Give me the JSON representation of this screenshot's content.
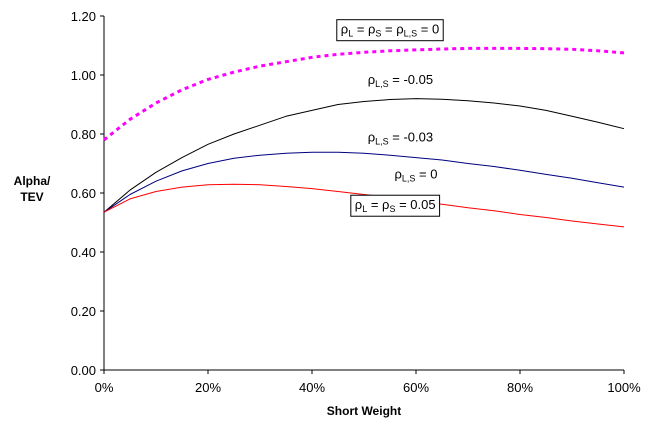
{
  "chart_data": {
    "type": "line",
    "title": "",
    "xlabel": "Short Weight",
    "ylabel": [
      "Alpha/",
      "TEV"
    ],
    "x_ticks": [
      "0%",
      "20%",
      "40%",
      "60%",
      "80%",
      "100%"
    ],
    "y_ticks": [
      "0.00",
      "0.20",
      "0.40",
      "0.60",
      "0.80",
      "1.00",
      "1.20"
    ],
    "xlim": [
      0,
      1
    ],
    "ylim": [
      0,
      1.2
    ],
    "grid": false,
    "legend": "none",
    "x": [
      0,
      0.05,
      0.1,
      0.15,
      0.2,
      0.25,
      0.3,
      0.35,
      0.4,
      0.45,
      0.5,
      0.55,
      0.6,
      0.65,
      0.7,
      0.75,
      0.8,
      0.85,
      0.9,
      0.95,
      1.0
    ],
    "series": [
      {
        "color": "#ff00ff",
        "dashed": true,
        "values": [
          0.78,
          0.85,
          0.905,
          0.95,
          0.985,
          1.01,
          1.03,
          1.045,
          1.06,
          1.07,
          1.077,
          1.082,
          1.085,
          1.088,
          1.09,
          1.09,
          1.09,
          1.089,
          1.087,
          1.082,
          1.075
        ]
      },
      {
        "color": "#000000",
        "dashed": false,
        "values": [
          0.535,
          0.61,
          0.67,
          0.72,
          0.765,
          0.8,
          0.83,
          0.86,
          0.88,
          0.9,
          0.91,
          0.917,
          0.92,
          0.918,
          0.913,
          0.905,
          0.895,
          0.88,
          0.86,
          0.84,
          0.818
        ]
      },
      {
        "color": "#000080",
        "dashed": false,
        "values": [
          0.535,
          0.595,
          0.64,
          0.675,
          0.7,
          0.718,
          0.728,
          0.735,
          0.738,
          0.738,
          0.735,
          0.728,
          0.72,
          0.712,
          0.7,
          0.69,
          0.677,
          0.663,
          0.65,
          0.635,
          0.62
        ]
      },
      {
        "color": "#ff0000",
        "dashed": false,
        "values": [
          0.535,
          0.58,
          0.605,
          0.62,
          0.628,
          0.63,
          0.628,
          0.622,
          0.615,
          0.605,
          0.595,
          0.585,
          0.573,
          0.562,
          0.55,
          0.54,
          0.527,
          0.517,
          0.505,
          0.495,
          0.485
        ]
      }
    ],
    "annotations": [
      {
        "parts": [
          [
            "ρ",
            "L"
          ],
          [
            " = ρ",
            "S"
          ],
          [
            " = ρ",
            "L,S"
          ],
          [
            " = 0",
            ""
          ]
        ],
        "boxed": true,
        "x": 0.55,
        "y": 1.14
      },
      {
        "parts": [
          [
            "ρ",
            "L,S"
          ],
          [
            " = -0.05",
            ""
          ]
        ],
        "boxed": false,
        "x": 0.57,
        "y": 0.97
      },
      {
        "parts": [
          [
            "ρ",
            "L,S"
          ],
          [
            " = -0.03",
            ""
          ]
        ],
        "boxed": false,
        "x": 0.57,
        "y": 0.775
      },
      {
        "parts": [
          [
            "ρ",
            "L,S"
          ],
          [
            " = 0",
            ""
          ]
        ],
        "boxed": false,
        "x": 0.6,
        "y": 0.65
      },
      {
        "parts": [
          [
            "ρ",
            "L"
          ],
          [
            " = ρ",
            "S"
          ],
          [
            " = 0.05",
            ""
          ]
        ],
        "boxed": true,
        "x": 0.56,
        "y": 0.545
      }
    ]
  }
}
